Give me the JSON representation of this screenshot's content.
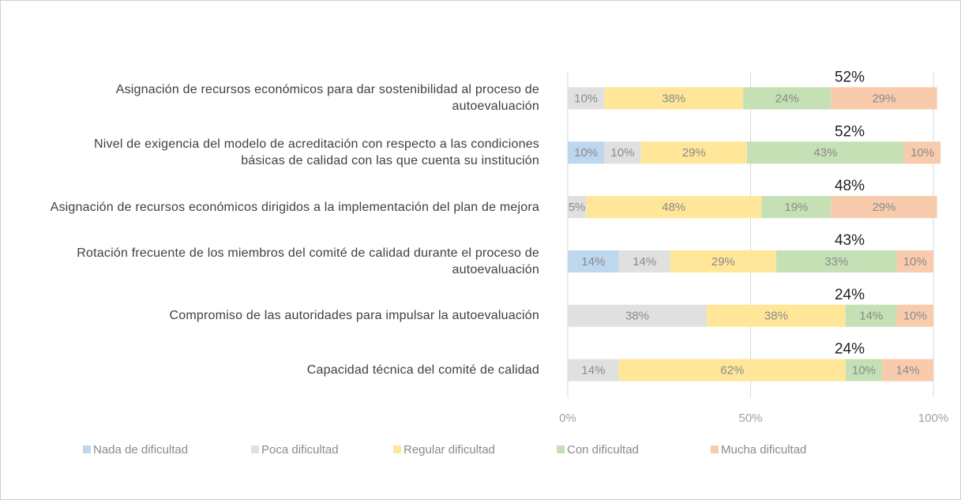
{
  "chart_data": {
    "type": "stacked_bar_horizontal",
    "categories": [
      "Asignación de recursos económicos para dar sostenibilidad al proceso de autoevaluación",
      "Nivel de exigencia del modelo de acreditación con respecto a las condiciones básicas de calidad con las que cuenta su institución",
      "Asignación de recursos económicos dirigidos a la implementación del plan de mejora",
      "Rotación frecuente de los miembros del comité de calidad durante el proceso de autoevaluación",
      "Compromiso de las autoridades para impulsar la autoevaluación",
      "Capacidad técnica del comité de calidad"
    ],
    "series": [
      {
        "name": "Nada de dificultad",
        "color": "#bdd7ee",
        "values": [
          0,
          10,
          0,
          14,
          0,
          0
        ],
        "value_labels": [
          null,
          "10%",
          null,
          "14%",
          null,
          null
        ]
      },
      {
        "name": "Poca dificultad",
        "color": "#e0e0e0",
        "values": [
          10,
          10,
          5,
          14,
          38,
          14
        ],
        "value_labels": [
          "10%",
          "10%",
          "5%",
          "14%",
          "38%",
          "14%"
        ]
      },
      {
        "name": "Regular dificultad",
        "color": "#ffe699",
        "values": [
          38,
          29,
          48,
          29,
          38,
          62
        ],
        "value_labels": [
          "38%",
          "29%",
          "48%",
          "29%",
          "38%",
          "62%"
        ]
      },
      {
        "name": "Con dificultad",
        "color": "#c5e0b4",
        "values": [
          24,
          43,
          19,
          33,
          14,
          10
        ],
        "value_labels": [
          "24%",
          "43%",
          "19%",
          "33%",
          "14%",
          "10%"
        ]
      },
      {
        "name": "Mucha dificultad",
        "color": "#f8cbad",
        "values": [
          29,
          10,
          29,
          10,
          10,
          14
        ],
        "value_labels": [
          "29%",
          "10%",
          "29%",
          "10%",
          "10%",
          "14%"
        ]
      }
    ],
    "annotations": {
      "values": [
        52,
        52,
        48,
        43,
        24,
        24
      ],
      "value_labels": [
        "52%",
        "52%",
        "48%",
        "43%",
        "24%",
        "24%"
      ]
    },
    "xlim": [
      0,
      100
    ],
    "xticks": [
      {
        "value": 0,
        "label": "0%"
      },
      {
        "value": 50,
        "label": "50%"
      },
      {
        "value": 100,
        "label": "100%"
      }
    ],
    "grid": true,
    "legend": "bottom"
  }
}
